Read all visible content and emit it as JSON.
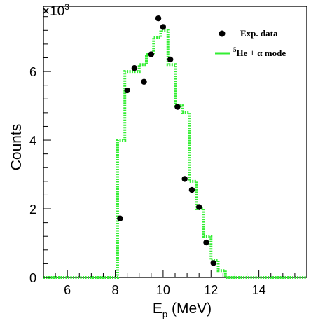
{
  "chart_data": {
    "type": "line",
    "title": "",
    "xlabel": "E",
    "xlabel_sub": "p",
    "xlabel_unit": " (MeV)",
    "ylabel": "Counts",
    "y_multiplier": "×10",
    "y_multiplier_exp": "3",
    "xlim": [
      5,
      16
    ],
    "ylim": [
      0,
      7.9
    ],
    "x_major_ticks": [
      6,
      8,
      10,
      12,
      14
    ],
    "y_major_ticks": [
      0,
      2,
      4,
      6
    ],
    "x_tick_labels": [
      "6",
      "8",
      "10",
      "12",
      "14"
    ],
    "y_tick_labels": [
      "0",
      "2",
      "4",
      "6"
    ],
    "grid": false,
    "legend_position": "top-right",
    "series": [
      {
        "name": "Exp. data",
        "kind": "points",
        "color": "#000000",
        "x": [
          8.2,
          8.5,
          8.8,
          9.2,
          9.5,
          9.8,
          10.0,
          10.3,
          10.6,
          10.9,
          11.2,
          11.5,
          11.8,
          12.1
        ],
        "y": [
          1.72,
          5.45,
          6.1,
          5.7,
          6.5,
          7.55,
          7.3,
          6.35,
          4.97,
          2.87,
          2.55,
          2.05,
          1.02,
          0.42
        ]
      },
      {
        "name": "He + α mode",
        "name_sup": "5",
        "kind": "step",
        "color": "#33ee33",
        "edges": [
          5,
          8.1,
          8.4,
          8.7,
          9.0,
          9.3,
          9.6,
          9.9,
          10.2,
          10.5,
          10.8,
          11.1,
          11.4,
          11.7,
          12.0,
          12.3,
          12.6,
          16
        ],
        "values": [
          0,
          4.0,
          6.0,
          6.0,
          6.2,
          6.5,
          7.0,
          7.2,
          6.2,
          5.0,
          4.8,
          2.8,
          2.0,
          1.2,
          0.5,
          0.2,
          0
        ]
      }
    ]
  }
}
